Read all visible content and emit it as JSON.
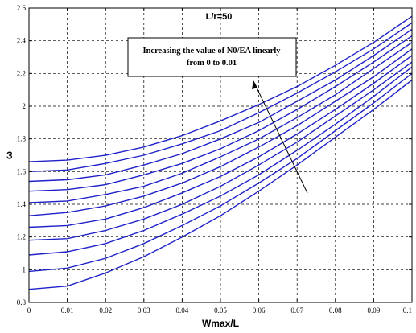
{
  "chart_data": {
    "type": "line",
    "title": "L/r=50",
    "xlabel": "Wmax/L",
    "ylabel": "ω",
    "xlim": [
      0,
      0.1
    ],
    "ylim": [
      0.8,
      2.6
    ],
    "grid": true,
    "x_ticks": [
      "0",
      "0.01",
      "0.02",
      "0.03",
      "0.04",
      "0.05",
      "0.06",
      "0.07",
      "0.08",
      "0.09",
      "0.1"
    ],
    "y_ticks": [
      "0.8",
      "1",
      "1.2",
      "1.4",
      "1.6",
      "1.8",
      "2",
      "2.2",
      "2.4",
      "2.6"
    ],
    "x": [
      0,
      0.01,
      0.02,
      0.03,
      0.04,
      0.05,
      0.06,
      0.07,
      0.08,
      0.09,
      0.1
    ],
    "series": [
      {
        "values": [
          0.88,
          0.9,
          0.98,
          1.08,
          1.2,
          1.33,
          1.48,
          1.64,
          1.81,
          1.98,
          2.16
        ]
      },
      {
        "values": [
          0.99,
          1.01,
          1.07,
          1.16,
          1.27,
          1.39,
          1.53,
          1.68,
          1.85,
          2.02,
          2.2
        ]
      },
      {
        "values": [
          1.09,
          1.11,
          1.16,
          1.24,
          1.34,
          1.45,
          1.58,
          1.73,
          1.89,
          2.06,
          2.24
        ]
      },
      {
        "values": [
          1.18,
          1.19,
          1.24,
          1.31,
          1.4,
          1.51,
          1.64,
          1.78,
          1.94,
          2.1,
          2.27
        ]
      },
      {
        "values": [
          1.26,
          1.27,
          1.31,
          1.38,
          1.47,
          1.57,
          1.69,
          1.83,
          1.98,
          2.14,
          2.31
        ]
      },
      {
        "values": [
          1.33,
          1.35,
          1.39,
          1.45,
          1.53,
          1.63,
          1.75,
          1.88,
          2.03,
          2.18,
          2.35
        ]
      },
      {
        "values": [
          1.41,
          1.42,
          1.46,
          1.51,
          1.59,
          1.69,
          1.8,
          1.93,
          2.07,
          2.23,
          2.39
        ]
      },
      {
        "values": [
          1.48,
          1.49,
          1.52,
          1.58,
          1.65,
          1.74,
          1.85,
          1.98,
          2.12,
          2.27,
          2.43
        ]
      },
      {
        "values": [
          1.54,
          1.55,
          1.58,
          1.64,
          1.71,
          1.8,
          1.9,
          2.03,
          2.16,
          2.31,
          2.47
        ]
      },
      {
        "values": [
          1.6,
          1.61,
          1.65,
          1.7,
          1.77,
          1.85,
          1.96,
          2.08,
          2.21,
          2.35,
          2.51
        ]
      },
      {
        "values": [
          1.66,
          1.67,
          1.7,
          1.75,
          1.82,
          1.91,
          2.01,
          2.12,
          2.25,
          2.39,
          2.55
        ]
      }
    ],
    "annotation": {
      "line1": "Increasing the value of N0/EA linearly",
      "line2": "from 0 to 0.01"
    },
    "line_color": "#1f22c8"
  }
}
